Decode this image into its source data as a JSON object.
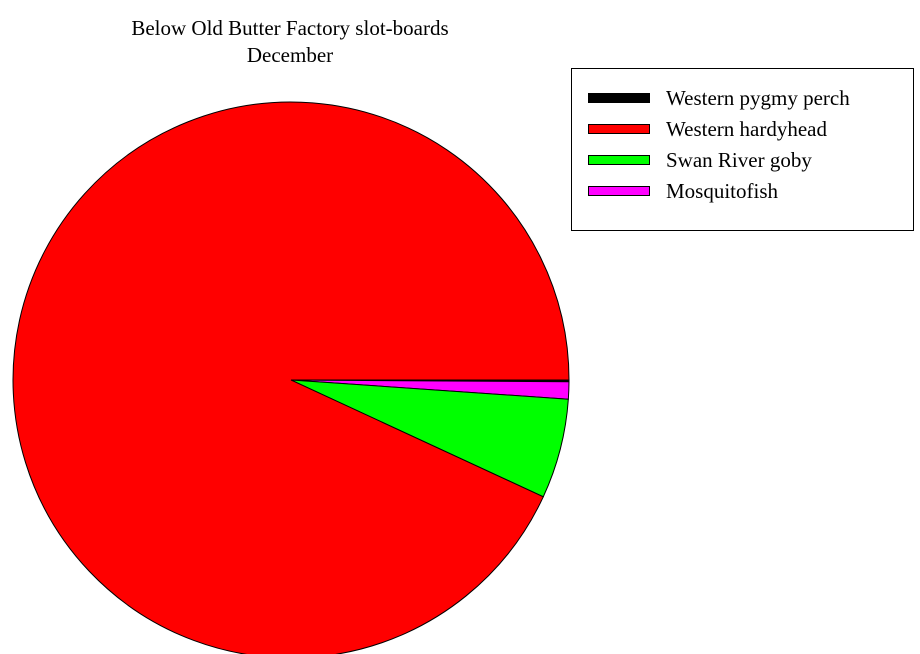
{
  "chart_data": {
    "type": "pie",
    "title": "Below Old Butter Factory slot-boards",
    "subtitle": "December",
    "legend_position": "top-right",
    "slices": [
      {
        "name": "Western pygmy perch",
        "value": 0.1,
        "color": "#000000"
      },
      {
        "name": "Western hardyhead",
        "value": 93.1,
        "color": "#ff0000"
      },
      {
        "name": "Swan River goby",
        "value": 5.8,
        "color": "#00ff00"
      },
      {
        "name": "Mosquitofish",
        "value": 1.0,
        "color": "#ff00ff"
      }
    ]
  }
}
